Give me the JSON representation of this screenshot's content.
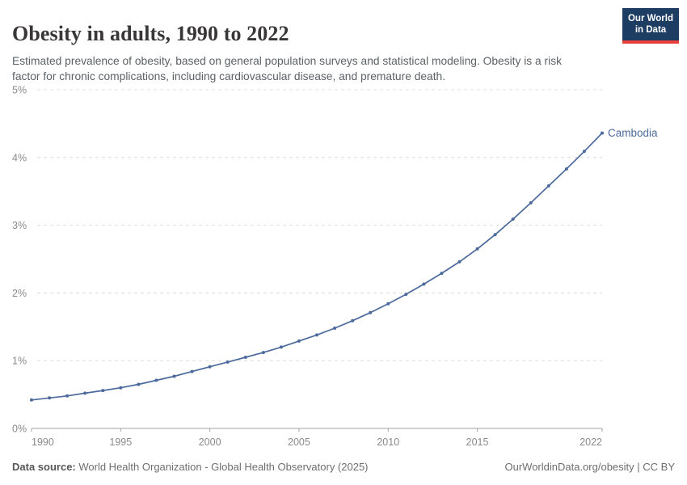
{
  "header": {
    "title": "Obesity in adults, 1990 to 2022",
    "subtitle": "Estimated prevalence of obesity, based on general population surveys and statistical modeling. Obesity is a risk factor for chronic complications, including cardiovascular disease, and premature death.",
    "logo": {
      "line1": "Our World",
      "line2": "in Data"
    }
  },
  "footer": {
    "source_label": "Data source:",
    "source_text": " World Health Organization - Global Health Observatory (2025)",
    "link_text": "OurWorldinData.org/obesity | CC BY"
  },
  "colors": {
    "series_blue": "#4c6a9c",
    "grid_gray": "#dcdcdc",
    "axis_gray": "#a3a3a3",
    "tick_label_gray": "#8a8a8a",
    "logo_navy": "#1d3d63",
    "logo_red": "#e6403c"
  },
  "chart_data": {
    "type": "line",
    "title": "Obesity in adults, 1990 to 2022",
    "xlabel": "",
    "ylabel": "",
    "xlim": [
      1990,
      2022
    ],
    "ylim": [
      0,
      5
    ],
    "grid": "horizontal-dashed",
    "legend_position": "end-of-line-label",
    "xticks": [
      1990,
      1995,
      2000,
      2005,
      2010,
      2015,
      2022
    ],
    "yticks": [
      0,
      1,
      2,
      3,
      4,
      5
    ],
    "ytick_labels": [
      "0%",
      "1%",
      "2%",
      "3%",
      "4%",
      "5%"
    ],
    "series": [
      {
        "name": "Cambodia",
        "x": [
          1990,
          1991,
          1992,
          1993,
          1994,
          1995,
          1996,
          1997,
          1998,
          1999,
          2000,
          2001,
          2002,
          2003,
          2004,
          2005,
          2006,
          2007,
          2008,
          2009,
          2010,
          2011,
          2012,
          2013,
          2014,
          2015,
          2016,
          2017,
          2018,
          2019,
          2020,
          2021,
          2022
        ],
        "values": [
          0.42,
          0.45,
          0.48,
          0.52,
          0.56,
          0.6,
          0.65,
          0.71,
          0.77,
          0.84,
          0.91,
          0.98,
          1.05,
          1.12,
          1.2,
          1.29,
          1.38,
          1.48,
          1.59,
          1.71,
          1.84,
          1.98,
          2.13,
          2.29,
          2.46,
          2.65,
          2.86,
          3.09,
          3.33,
          3.58,
          3.83,
          4.09,
          4.36
        ]
      }
    ]
  }
}
